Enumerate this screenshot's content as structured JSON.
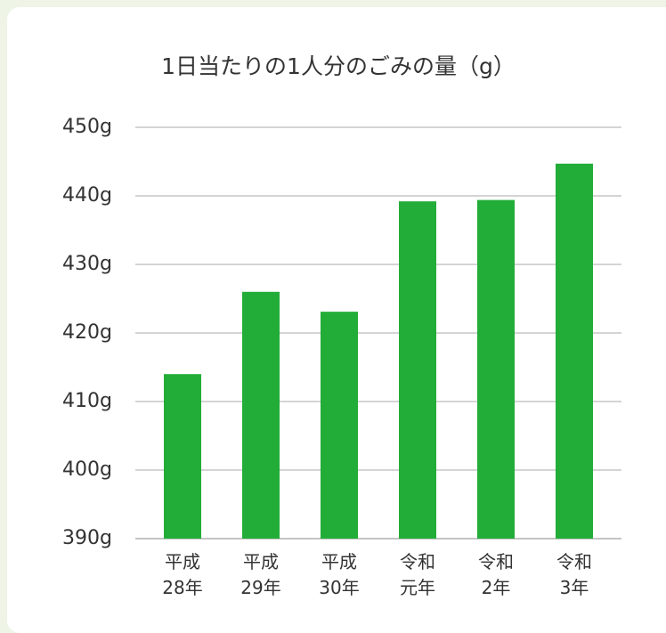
{
  "chart_data": {
    "type": "bar",
    "title": "1日当たりの1人分のごみの量（g）",
    "categories": [
      "平成\n28年",
      "平成\n29年",
      "平成\n30年",
      "令和\n元年",
      "令和\n2年",
      "令和\n3年"
    ],
    "values": [
      414,
      426,
      423.1,
      439.2,
      439.4,
      444.7
    ],
    "color": "#22ad38",
    "ylim": [
      390,
      450
    ],
    "yticks": [
      {
        "value": 390,
        "label": "390g"
      },
      {
        "value": 400,
        "label": "400g"
      },
      {
        "value": 410,
        "label": "410g"
      },
      {
        "value": 420,
        "label": "420g"
      },
      {
        "value": 430,
        "label": "430g"
      },
      {
        "value": 440,
        "label": "440g"
      },
      {
        "value": 450,
        "label": "450g"
      }
    ],
    "grid": true
  }
}
